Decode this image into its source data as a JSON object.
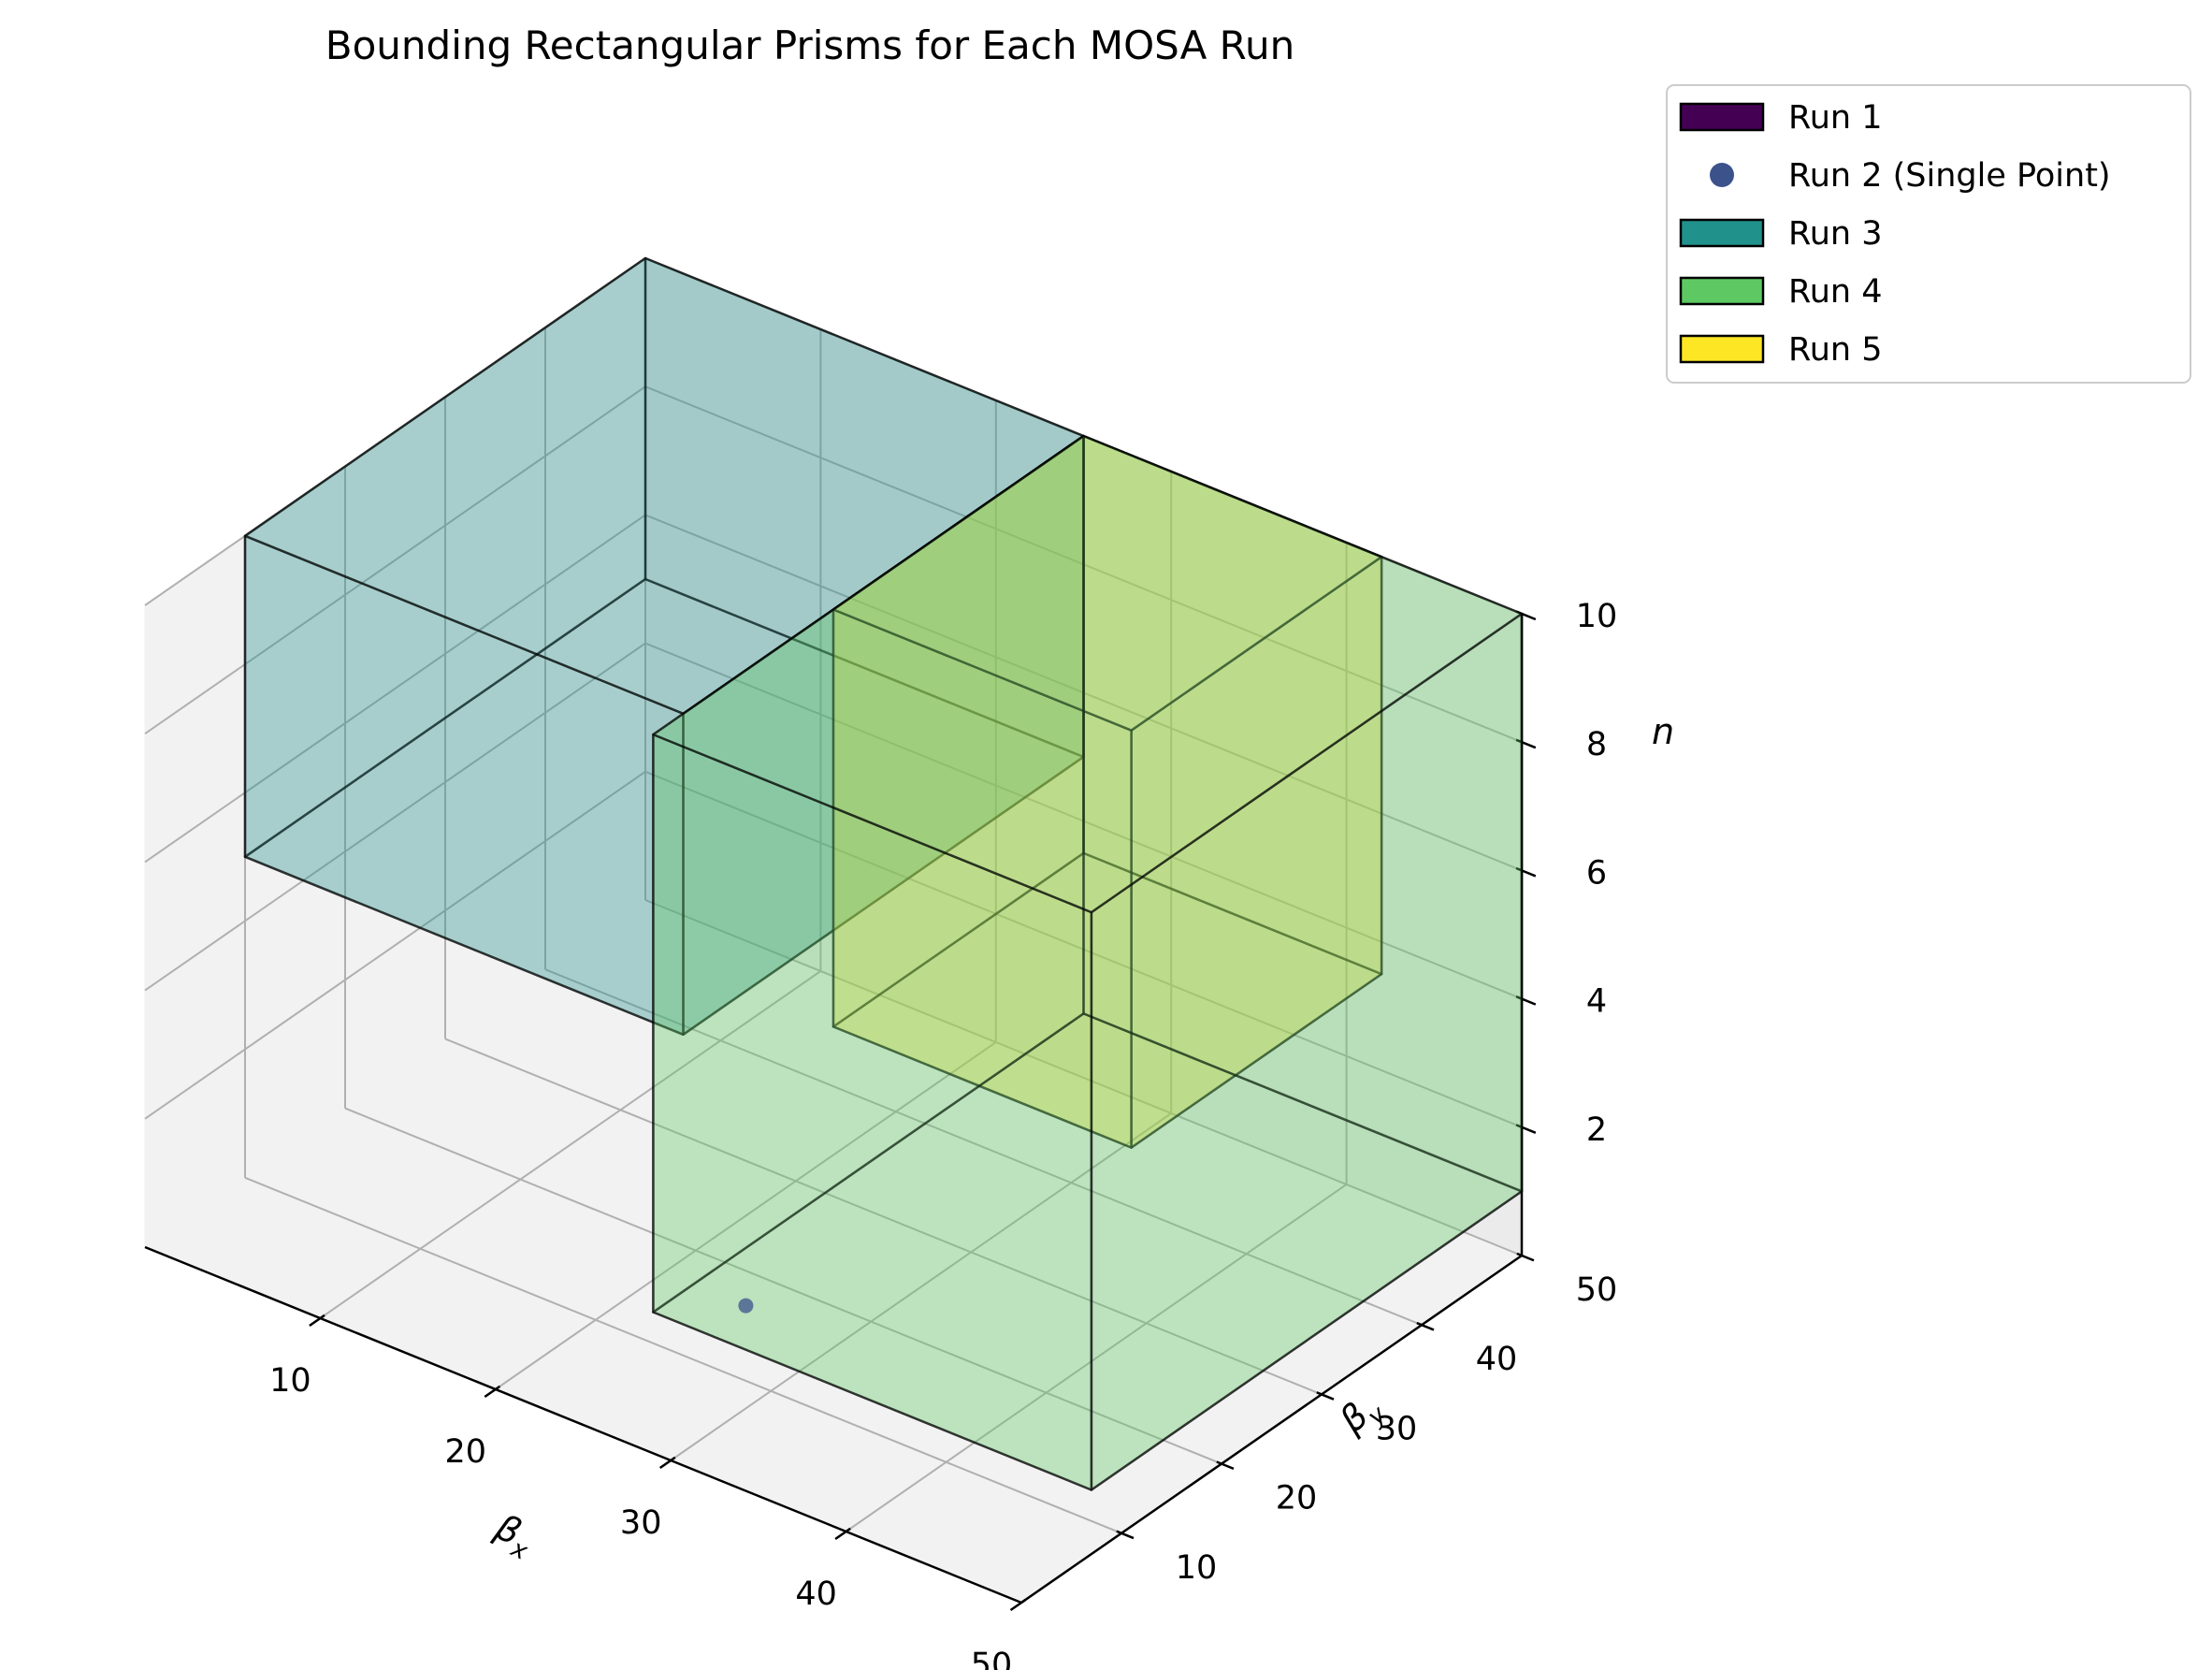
{
  "chart_data": {
    "type": "3d-box",
    "title": "Bounding Rectangular Prisms for Each MOSA Run",
    "xlabel": "β_x",
    "ylabel": "β_y",
    "zlabel": "n",
    "xlim": [
      0,
      50
    ],
    "ylim": [
      0,
      50
    ],
    "zlim": [
      0,
      10
    ],
    "x_ticks": [
      "10",
      "20",
      "30",
      "40",
      "50"
    ],
    "y_ticks": [
      "10",
      "20",
      "30",
      "40",
      "50"
    ],
    "z_ticks": [
      "2",
      "4",
      "6",
      "8",
      "10"
    ],
    "x_tick_values": [
      10,
      20,
      30,
      40,
      50
    ],
    "y_tick_values": [
      10,
      20,
      30,
      40,
      50
    ],
    "z_tick_values": [
      2,
      4,
      6,
      8,
      10
    ],
    "grid": true,
    "legend_position": "upper-right-outside",
    "legend": [
      {
        "label": "Run 1",
        "kind": "box",
        "color": "#440154"
      },
      {
        "label": "Run 2 (Single Point)",
        "kind": "point",
        "color": "#3b528b"
      },
      {
        "label": "Run 3",
        "kind": "box",
        "color": "#21918c"
      },
      {
        "label": "Run 4",
        "kind": "box",
        "color": "#5ec962"
      },
      {
        "label": "Run 5",
        "kind": "box",
        "color": "#fde725"
      }
    ],
    "series": [
      {
        "name": "Run 3",
        "kind": "box",
        "x": [
          0,
          25
        ],
        "y": [
          10,
          50
        ],
        "z": [
          5,
          10
        ],
        "color": "#21918c"
      },
      {
        "name": "Run 5",
        "kind": "box",
        "x": [
          25,
          42
        ],
        "y": [
          25,
          50
        ],
        "z": [
          3.5,
          10
        ],
        "color": "#fde725"
      },
      {
        "name": "Run 4",
        "kind": "box",
        "x": [
          25,
          50
        ],
        "y": [
          7,
          50
        ],
        "z": [
          1,
          10
        ],
        "color": "#5ec962"
      },
      {
        "name": "Run 2 (Single Point)",
        "kind": "point",
        "x": 28,
        "y": 11,
        "z": 1,
        "color": "#3b528b"
      }
    ]
  }
}
